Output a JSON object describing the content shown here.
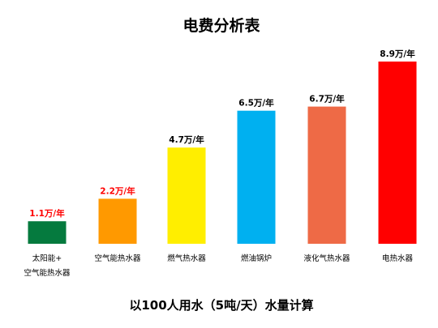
{
  "chart_data": {
    "type": "bar",
    "title": "电费分析表",
    "subtitle": "以100人用水（5吨/天）水量计算",
    "unit": "万/年",
    "ylim": [
      0,
      8.9
    ],
    "grid": false,
    "legend": "none",
    "categories": [
      [
        "太阳能+",
        "空气能热水器"
      ],
      [
        "空气能热水器"
      ],
      [
        "燃气热水器"
      ],
      [
        "燃油锅炉"
      ],
      [
        "液化气热水器"
      ],
      [
        "电热水器"
      ]
    ],
    "values": [
      1.1,
      2.2,
      4.7,
      6.5,
      6.7,
      8.9
    ],
    "value_labels": [
      "1.1万/年",
      "2.2万/年",
      "4.7万/年",
      "6.5万/年",
      "6.7万/年",
      "8.9万/年"
    ],
    "bar_colors": [
      "#057A3E",
      "#FF9900",
      "#FFEE00",
      "#00B0F0",
      "#EE6A46",
      "#FF0000"
    ],
    "label_colors": [
      "#FF0000",
      "#FF0000",
      "#000000",
      "#000000",
      "#000000",
      "#000000"
    ]
  }
}
